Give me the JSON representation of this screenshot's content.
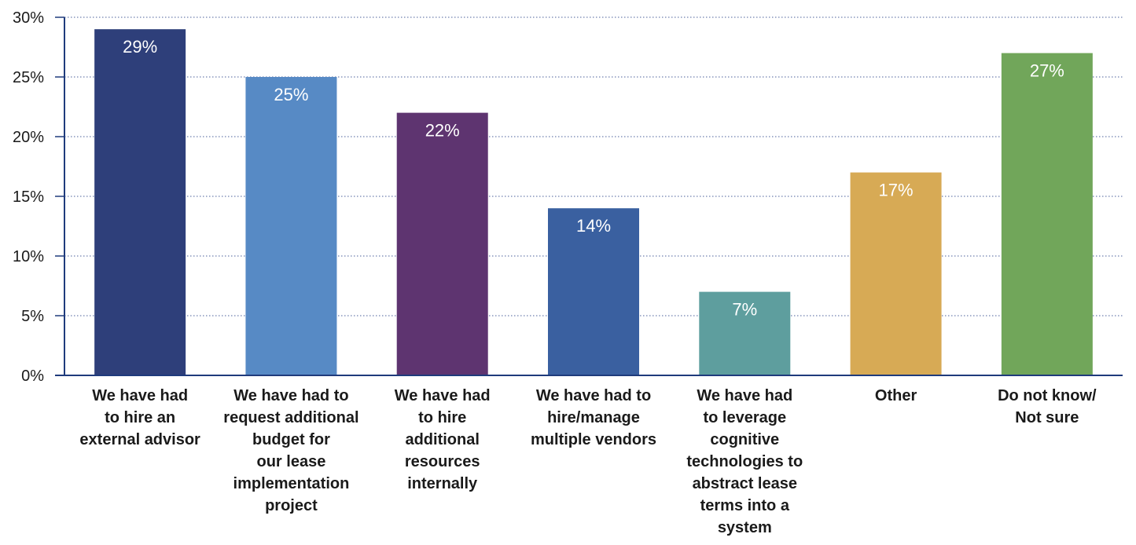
{
  "chart_data": {
    "type": "bar",
    "title": "",
    "xlabel": "",
    "ylabel": "",
    "ylim": [
      0,
      30
    ],
    "y_ticks": [
      "0%",
      "5%",
      "10%",
      "15%",
      "20%",
      "25%",
      "30%"
    ],
    "grid": "horizontal dotted",
    "categories": [
      [
        "We have had",
        "to hire an",
        "external advisor"
      ],
      [
        "We have had to",
        "request additional",
        "budget for",
        "our lease",
        "implementation",
        "project"
      ],
      [
        "We have had",
        "to hire",
        "additional",
        "resources",
        "internally"
      ],
      [
        "We have had to",
        "hire/manage",
        "multiple vendors"
      ],
      [
        "We have had",
        "to leverage",
        "cognitive",
        "technologies to",
        "abstract lease",
        "terms into a",
        "system"
      ],
      [
        "Other"
      ],
      [
        "Do not know/",
        "Not sure"
      ]
    ],
    "values": [
      29,
      25,
      22,
      14,
      7,
      17,
      27
    ],
    "value_labels": [
      "29%",
      "25%",
      "22%",
      "14%",
      "7%",
      "17%",
      "27%"
    ],
    "colors": [
      "#2e3f7a",
      "#578ac5",
      "#5e3470",
      "#3a60a0",
      "#5e9e9e",
      "#d7aa55",
      "#71a65a"
    ],
    "axis_color": "#1f3b7c"
  }
}
